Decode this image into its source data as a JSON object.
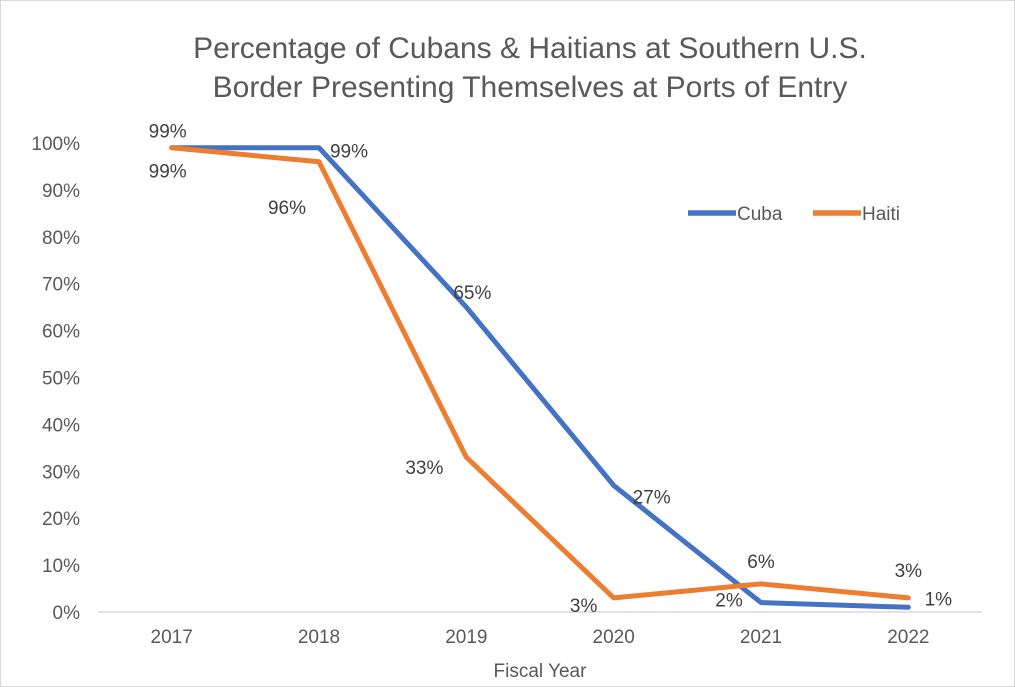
{
  "chart_data": {
    "type": "line",
    "title_lines": [
      "Percentage of Cubans & Haitians at Southern U.S.",
      "Border Presenting Themselves at Ports of Entry"
    ],
    "xlabel": "Fiscal Year",
    "ylabel": "",
    "categories": [
      "2017",
      "2018",
      "2019",
      "2020",
      "2021",
      "2022"
    ],
    "yticks": [
      "0%",
      "10%",
      "20%",
      "30%",
      "40%",
      "50%",
      "60%",
      "70%",
      "80%",
      "90%",
      "100%"
    ],
    "ylim": [
      0,
      100
    ],
    "grid": false,
    "legend_position": "top-right",
    "series": [
      {
        "name": "Cuba",
        "color": "#4472C4",
        "values": [
          99,
          99,
          65,
          27,
          2,
          1
        ],
        "labels": [
          "99%",
          "99%",
          "65%",
          "27%",
          "2%",
          "1%"
        ]
      },
      {
        "name": "Haiti",
        "color": "#ED7D31",
        "values": [
          99,
          96,
          33,
          3,
          6,
          3
        ],
        "labels": [
          "99%",
          "96%",
          "33%",
          "3%",
          "6%",
          "3%"
        ]
      }
    ]
  }
}
